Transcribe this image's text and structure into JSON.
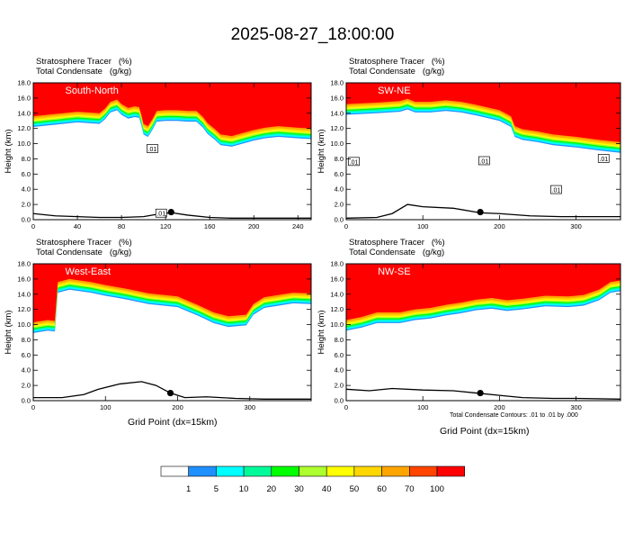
{
  "title": "2025-08-27_18:00:00",
  "panel_header": {
    "line1_label": "Stratosphere Tracer",
    "line1_unit": "(%)",
    "line2_label": "Total Condensate",
    "line2_unit": "(g/kg)"
  },
  "footnote": "Total Condensate Contours: .01 to .01 by .000",
  "colors": {
    "levels": [
      "#ffffff",
      "#1e90ff",
      "#00ffff",
      "#00fa9a",
      "#00ff00",
      "#adff2f",
      "#ffff00",
      "#ffd700",
      "#ffa500",
      "#ff4500",
      "#ff0000"
    ],
    "terrain_line": "#000000",
    "contour_line": "#000000"
  },
  "legend": {
    "labels": [
      "1",
      "5",
      "10",
      "20",
      "30",
      "40",
      "50",
      "60",
      "70",
      "100"
    ]
  },
  "chart_data": [
    {
      "type": "heatmap",
      "panel_label": "South-North",
      "ylabel": "Height (km)",
      "xlabel": "",
      "xlim": [
        0,
        252
      ],
      "ylim": [
        0,
        18
      ],
      "xticks": [
        "0",
        "40",
        "80",
        "120",
        "160",
        "200",
        "240"
      ],
      "xtick_values": [
        0,
        40,
        80,
        120,
        160,
        200,
        240
      ],
      "yticks": [
        "0.0",
        "2.0",
        "4.0",
        "6.0",
        "8.0",
        "10.0",
        "12.0",
        "14.0",
        "16.0",
        "18.0"
      ],
      "contour_labels": [
        {
          "text": ".01",
          "x": 108,
          "y": 9.3
        },
        {
          "text": ".01",
          "x": 116,
          "y": 0.8
        }
      ],
      "marker": {
        "x": 125,
        "y": 1.0
      },
      "tropopause": [
        [
          0,
          13.6
        ],
        [
          20,
          13.9
        ],
        [
          40,
          14.2
        ],
        [
          60,
          14.0
        ],
        [
          65,
          14.6
        ],
        [
          70,
          15.5
        ],
        [
          76,
          15.8
        ],
        [
          80,
          15.2
        ],
        [
          86,
          14.7
        ],
        [
          92,
          14.9
        ],
        [
          96,
          14.8
        ],
        [
          98,
          13.8
        ],
        [
          100,
          12.6
        ],
        [
          104,
          12.3
        ],
        [
          108,
          13.2
        ],
        [
          112,
          14.3
        ],
        [
          120,
          14.4
        ],
        [
          130,
          14.4
        ],
        [
          140,
          14.3
        ],
        [
          148,
          14.3
        ],
        [
          154,
          13.5
        ],
        [
          158,
          12.7
        ],
        [
          164,
          12.0
        ],
        [
          170,
          11.2
        ],
        [
          180,
          11.0
        ],
        [
          190,
          11.4
        ],
        [
          200,
          11.8
        ],
        [
          210,
          12.1
        ],
        [
          222,
          12.3
        ],
        [
          240,
          12.1
        ],
        [
          252,
          12.0
        ]
      ],
      "terrain": [
        [
          0,
          0.8
        ],
        [
          20,
          0.5
        ],
        [
          40,
          0.4
        ],
        [
          60,
          0.3
        ],
        [
          80,
          0.3
        ],
        [
          100,
          0.4
        ],
        [
          116,
          0.8
        ],
        [
          126,
          0.9
        ],
        [
          140,
          0.6
        ],
        [
          160,
          0.3
        ],
        [
          180,
          0.2
        ],
        [
          200,
          0.2
        ],
        [
          220,
          0.2
        ],
        [
          252,
          0.2
        ]
      ]
    },
    {
      "type": "heatmap",
      "panel_label": "SW-NE",
      "ylabel": "Height (km)",
      "xlabel": "",
      "xlim": [
        0,
        358
      ],
      "ylim": [
        0,
        18
      ],
      "xticks": [
        "0",
        "100",
        "200",
        "300"
      ],
      "xtick_values": [
        0,
        100,
        200,
        300
      ],
      "yticks": [
        "0.0",
        "2.0",
        "4.0",
        "6.0",
        "8.0",
        "10.0",
        "12.0",
        "14.0",
        "16.0",
        "18.0"
      ],
      "contour_labels": [
        {
          "text": ".01",
          "x": 10,
          "y": 7.6
        },
        {
          "text": ".01",
          "x": 180,
          "y": 7.7
        },
        {
          "text": ".01",
          "x": 336,
          "y": 8.0
        },
        {
          "text": ".01",
          "x": 274,
          "y": 3.9
        }
      ],
      "marker": {
        "x": 175,
        "y": 1.0
      },
      "tropopause": [
        [
          0,
          15.2
        ],
        [
          40,
          15.4
        ],
        [
          70,
          15.6
        ],
        [
          80,
          15.9
        ],
        [
          90,
          15.5
        ],
        [
          110,
          15.5
        ],
        [
          130,
          15.7
        ],
        [
          150,
          15.5
        ],
        [
          170,
          15.1
        ],
        [
          200,
          14.4
        ],
        [
          215,
          13.6
        ],
        [
          220,
          12.3
        ],
        [
          230,
          11.9
        ],
        [
          250,
          11.6
        ],
        [
          270,
          11.2
        ],
        [
          300,
          10.9
        ],
        [
          330,
          10.5
        ],
        [
          358,
          10.2
        ]
      ],
      "terrain": [
        [
          0,
          0.2
        ],
        [
          40,
          0.3
        ],
        [
          60,
          0.8
        ],
        [
          80,
          2.0
        ],
        [
          100,
          1.7
        ],
        [
          140,
          1.5
        ],
        [
          175,
          0.9
        ],
        [
          200,
          0.8
        ],
        [
          240,
          0.5
        ],
        [
          280,
          0.4
        ],
        [
          320,
          0.4
        ],
        [
          358,
          0.4
        ]
      ]
    },
    {
      "type": "heatmap",
      "panel_label": "West-East",
      "ylabel": "Height (km)",
      "xlabel": "Grid Point (dx=15km)",
      "xlim": [
        0,
        385
      ],
      "ylim": [
        0,
        18
      ],
      "xticks": [
        "0",
        "100",
        "200",
        "300"
      ],
      "xtick_values": [
        0,
        100,
        200,
        300
      ],
      "yticks": [
        "0.0",
        "2.0",
        "4.0",
        "6.0",
        "8.0",
        "10.0",
        "12.0",
        "14.0",
        "16.0",
        "18.0"
      ],
      "contour_labels": [],
      "marker": {
        "x": 190,
        "y": 1.0
      },
      "tropopause": [
        [
          0,
          10.3
        ],
        [
          20,
          10.6
        ],
        [
          30,
          10.5
        ],
        [
          34,
          15.6
        ],
        [
          50,
          16.0
        ],
        [
          80,
          15.6
        ],
        [
          100,
          15.2
        ],
        [
          130,
          14.7
        ],
        [
          160,
          14.1
        ],
        [
          200,
          13.7
        ],
        [
          230,
          12.5
        ],
        [
          250,
          11.6
        ],
        [
          270,
          11.1
        ],
        [
          295,
          11.3
        ],
        [
          305,
          12.7
        ],
        [
          320,
          13.6
        ],
        [
          340,
          13.9
        ],
        [
          360,
          14.2
        ],
        [
          385,
          14.1
        ]
      ],
      "terrain": [
        [
          0,
          0.4
        ],
        [
          40,
          0.4
        ],
        [
          70,
          0.8
        ],
        [
          90,
          1.5
        ],
        [
          120,
          2.2
        ],
        [
          150,
          2.5
        ],
        [
          170,
          2.0
        ],
        [
          190,
          1.0
        ],
        [
          210,
          0.4
        ],
        [
          240,
          0.5
        ],
        [
          280,
          0.3
        ],
        [
          320,
          0.2
        ],
        [
          385,
          0.2
        ]
      ]
    },
    {
      "type": "heatmap",
      "panel_label": "NW-SE",
      "ylabel": "Height (km)",
      "xlabel": "Grid Point (dx=15km)",
      "xlim": [
        0,
        358
      ],
      "ylim": [
        0,
        18
      ],
      "xticks": [
        "0",
        "100",
        "200",
        "300"
      ],
      "xtick_values": [
        0,
        100,
        200,
        300
      ],
      "yticks": [
        "0.0",
        "2.0",
        "4.0",
        "6.0",
        "8.0",
        "10.0",
        "12.0",
        "14.0",
        "16.0",
        "18.0"
      ],
      "contour_labels": [],
      "marker": {
        "x": 175,
        "y": 1.0
      },
      "tropopause": [
        [
          0,
          10.6
        ],
        [
          20,
          11.0
        ],
        [
          40,
          11.6
        ],
        [
          70,
          11.6
        ],
        [
          90,
          12.0
        ],
        [
          110,
          12.2
        ],
        [
          130,
          12.6
        ],
        [
          150,
          12.9
        ],
        [
          170,
          13.3
        ],
        [
          190,
          13.5
        ],
        [
          210,
          13.2
        ],
        [
          230,
          13.4
        ],
        [
          260,
          13.8
        ],
        [
          290,
          13.7
        ],
        [
          310,
          13.9
        ],
        [
          330,
          14.6
        ],
        [
          345,
          15.6
        ],
        [
          358,
          15.8
        ]
      ],
      "terrain": [
        [
          0,
          1.5
        ],
        [
          30,
          1.3
        ],
        [
          60,
          1.6
        ],
        [
          100,
          1.4
        ],
        [
          140,
          1.3
        ],
        [
          170,
          1.0
        ],
        [
          200,
          0.7
        ],
        [
          230,
          0.4
        ],
        [
          270,
          0.3
        ],
        [
          300,
          0.3
        ],
        [
          358,
          0.2
        ]
      ]
    }
  ]
}
